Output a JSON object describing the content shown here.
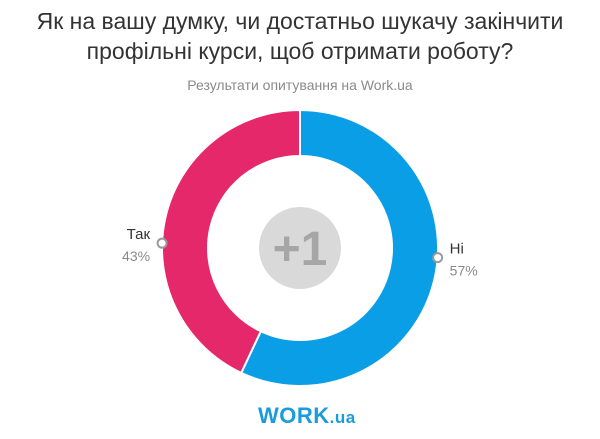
{
  "title_line1": "Як на вашу думку, чи достатньо шукачу закінчити",
  "title_line2": "профільні курси, щоб отримати роботу?",
  "subtitle": "Результати опитування на Work.ua",
  "logo": {
    "main": "WORK",
    "suffix": ".ua"
  },
  "center_icon": {
    "text": "+1",
    "color": "#d9d9d9",
    "text_color": "#a6a6a6"
  },
  "chart_data": {
    "type": "pie",
    "donut": true,
    "title": "Як на вашу думку, чи достатньо шукачу закінчити профільні курси, щоб отримати роботу?",
    "subtitle": "Результати опитування на Work.ua",
    "legend": "labels-on-slices",
    "series": [
      {
        "label": "Ні",
        "value": 57,
        "value_label": "57%",
        "color": "#0a9ee6"
      },
      {
        "label": "Так",
        "value": 43,
        "value_label": "43%",
        "color": "#e5286a"
      }
    ]
  }
}
